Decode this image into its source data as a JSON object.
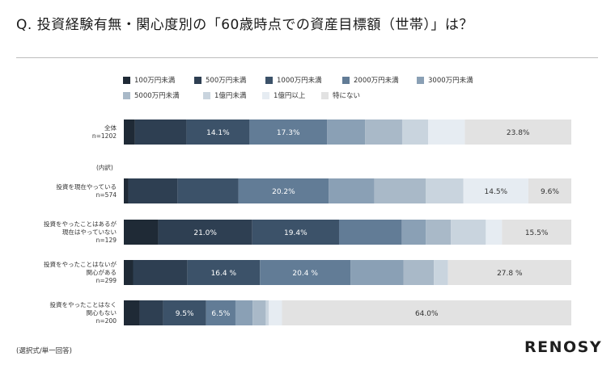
{
  "title": "Q. 投資経験有無・関心度別の「60歳時点での資産目標額（世帯）」は？",
  "footnote": "(選択式/単一回答)",
  "logo": "RENOSY",
  "breakdown_label": "(内訳)",
  "colors": [
    "#1f2a36",
    "#2e3f52",
    "#3c5269",
    "#627c96",
    "#8aa0b5",
    "#a9b9c8",
    "#c9d4de",
    "#e6ecf2",
    "#e2e2e2"
  ],
  "chart_data": {
    "type": "bar",
    "orientation": "horizontal-stacked-100",
    "legend": [
      "100万円未満",
      "500万円未満",
      "1000万円未満",
      "2000万円未満",
      "3000万円未満",
      "5000万円未満",
      "1億円未満",
      "1億円以上",
      "特にない"
    ],
    "rows": [
      {
        "label": [
          "全体",
          "n=1202"
        ],
        "values": [
          2.5,
          11.5,
          14.1,
          17.3,
          8.5,
          8.3,
          5.8,
          8.2,
          23.8
        ],
        "labels": [
          "",
          "",
          "14.1%",
          "17.3%",
          "",
          "",
          "",
          "",
          "23.8%"
        ]
      },
      {
        "label": [
          "投資を現在やっている",
          "n=574"
        ],
        "values": [
          1.0,
          11.0,
          13.6,
          20.2,
          10.2,
          11.5,
          8.4,
          14.5,
          9.6
        ],
        "labels": [
          "",
          "",
          "",
          "20.2%",
          "",
          "",
          "",
          "14.5%",
          "9.6%"
        ]
      },
      {
        "label": [
          "投資をやったことはあるが",
          "現在はやっていない",
          "n=129"
        ],
        "values": [
          7.7,
          21.0,
          19.4,
          14.0,
          5.4,
          5.6,
          7.8,
          3.6,
          15.5
        ],
        "labels": [
          "",
          "21.0%",
          "19.4%",
          "",
          "",
          "",
          "",
          "",
          "15.5%"
        ]
      },
      {
        "label": [
          "投資をやったことはないが",
          "関心がある",
          "n=299"
        ],
        "values": [
          2.1,
          12.2,
          16.4,
          20.4,
          12.0,
          6.8,
          3.2,
          0.0,
          27.8
        ],
        "labels": [
          "",
          "",
          "16.4 %",
          "20.4 %",
          "",
          "",
          "",
          "",
          "27.8 %"
        ]
      },
      {
        "label": [
          "投資をやったことはなく",
          "関心もない",
          "n=200"
        ],
        "values": [
          3.5,
          5.2,
          9.5,
          6.5,
          3.8,
          2.9,
          0.7,
          2.9,
          64.0
        ],
        "labels": [
          "",
          "",
          "9.5%",
          "6.5%",
          "",
          "",
          "",
          "",
          "64.0%"
        ]
      }
    ]
  }
}
